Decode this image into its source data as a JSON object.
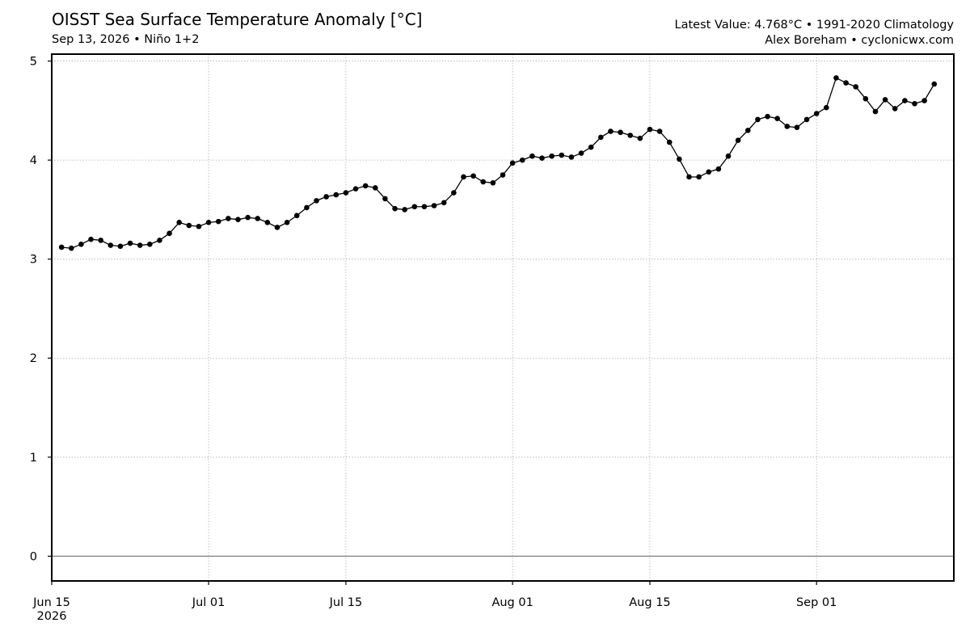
{
  "header": {
    "title": "OISST Sea Surface Temperature Anomaly [°C]",
    "subtitle": "Sep 13, 2026 • Niño 1+2",
    "latest": "Latest Value: 4.768°C • 1991-2020 Climatology",
    "credit": "Alex Boreham • cyclonicwx.com"
  },
  "colors": {
    "line": "#000000",
    "zero_line": "#808080",
    "grid": "#b0b0b0"
  },
  "chart_data": {
    "type": "line",
    "title": "OISST Sea Surface Temperature Anomaly [°C]",
    "xlabel": "",
    "ylabel": "",
    "x_range": [
      "2026-06-15",
      "2026-09-15"
    ],
    "ylim": [
      -0.25,
      5.07
    ],
    "grid": true,
    "y_ticks": [
      0,
      1,
      2,
      3,
      4,
      5
    ],
    "x_ticks": [
      {
        "date": "2026-06-15",
        "label": "Jun 15",
        "sublabel": "2026"
      },
      {
        "date": "2026-07-01",
        "label": "Jul 01",
        "sublabel": ""
      },
      {
        "date": "2026-07-15",
        "label": "Jul 15",
        "sublabel": ""
      },
      {
        "date": "2026-08-01",
        "label": "Aug 01",
        "sublabel": ""
      },
      {
        "date": "2026-08-15",
        "label": "Aug 15",
        "sublabel": ""
      },
      {
        "date": "2026-09-01",
        "label": "Sep 01",
        "sublabel": ""
      }
    ],
    "x_start": "2026-06-16",
    "values": [
      3.12,
      3.11,
      3.15,
      3.2,
      3.19,
      3.14,
      3.13,
      3.16,
      3.14,
      3.15,
      3.19,
      3.26,
      3.37,
      3.34,
      3.33,
      3.37,
      3.38,
      3.41,
      3.4,
      3.42,
      3.41,
      3.37,
      3.32,
      3.37,
      3.44,
      3.52,
      3.59,
      3.63,
      3.65,
      3.67,
      3.71,
      3.74,
      3.72,
      3.61,
      3.51,
      3.5,
      3.53,
      3.53,
      3.54,
      3.57,
      3.67,
      3.83,
      3.84,
      3.78,
      3.77,
      3.85,
      3.97,
      4.0,
      4.04,
      4.02,
      4.04,
      4.05,
      4.03,
      4.07,
      4.13,
      4.23,
      4.29,
      4.28,
      4.25,
      4.22,
      4.31,
      4.29,
      4.18,
      4.01,
      3.83,
      3.83,
      3.88,
      3.91,
      4.04,
      4.2,
      4.3,
      4.41,
      4.44,
      4.42,
      4.34,
      4.33,
      4.41,
      4.47,
      4.53,
      4.83,
      4.78,
      4.74,
      4.62,
      4.49,
      4.61,
      4.52,
      4.6,
      4.57,
      4.6,
      4.768
    ]
  }
}
